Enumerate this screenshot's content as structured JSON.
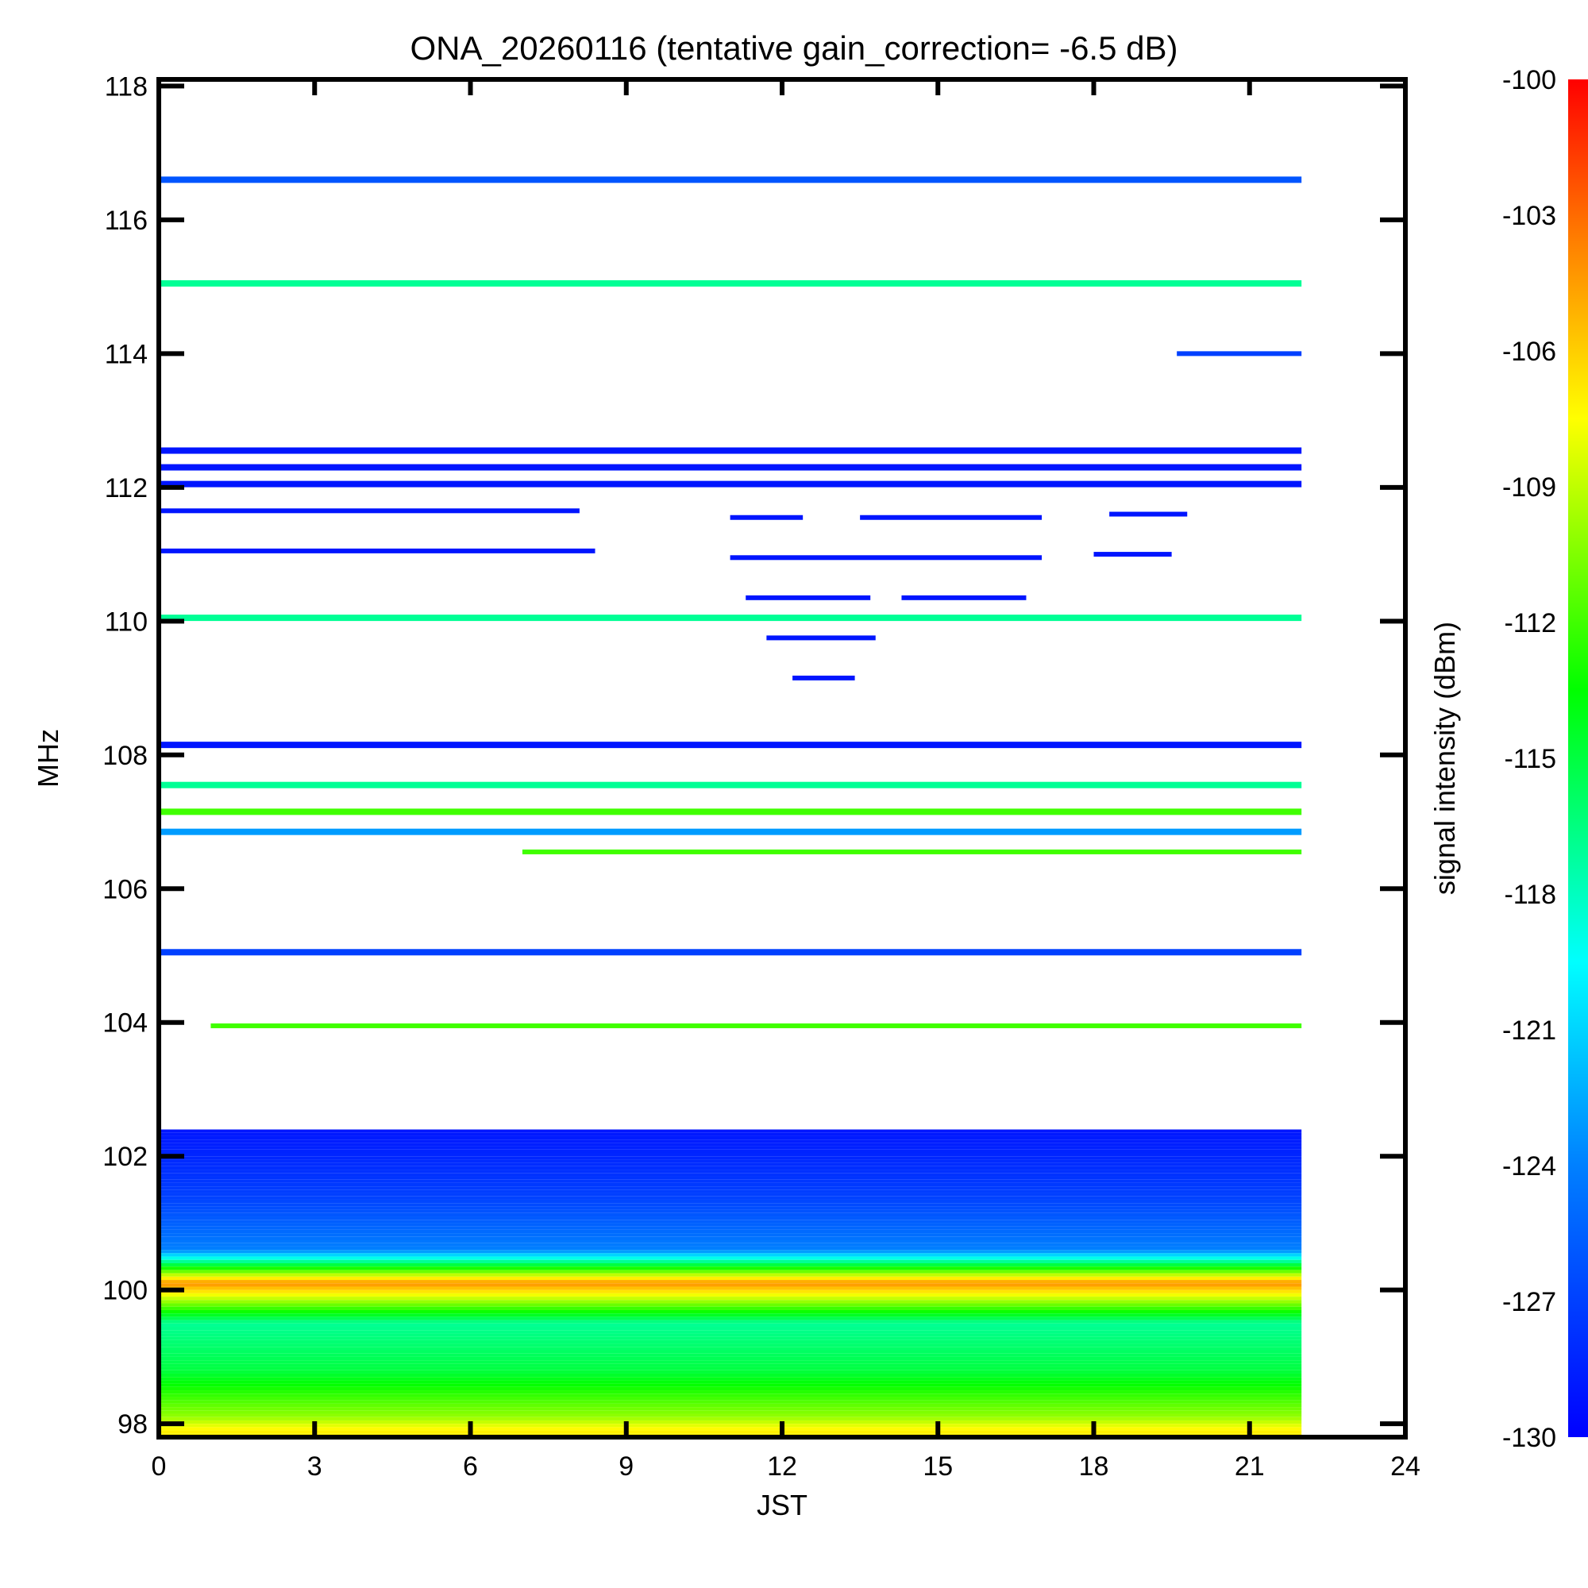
{
  "chart_data": {
    "type": "heatmap",
    "title": "ONA_20260116 (tentative gain_correction= -6.5 dB)",
    "xlabel": "JST",
    "ylabel": "MHz",
    "xlim": [
      0,
      24
    ],
    "ylim": [
      97.8,
      118.1
    ],
    "x_ticks": [
      0,
      3,
      6,
      9,
      12,
      15,
      18,
      21,
      24
    ],
    "y_ticks": [
      98,
      100,
      102,
      104,
      106,
      108,
      110,
      112,
      114,
      116,
      118
    ],
    "data_x_range": [
      0,
      22
    ],
    "colorbar": {
      "label": "signal intensity (dBm)",
      "range": [
        -130,
        -100
      ],
      "ticks": [
        -100,
        -103,
        -106,
        -109,
        -112,
        -115,
        -118,
        -121,
        -124,
        -127,
        -130
      ],
      "colormap": [
        "#0000ff",
        "#00ffff",
        "#00ff00",
        "#ffff00",
        "#ff8000",
        "#ff0000"
      ]
    },
    "persistent_bands": [
      {
        "freq_mhz": 116.6,
        "level_dbm": -126
      },
      {
        "freq_mhz": 115.05,
        "level_dbm": -117
      },
      {
        "freq_mhz": 112.55,
        "level_dbm": -129
      },
      {
        "freq_mhz": 112.3,
        "level_dbm": -129
      },
      {
        "freq_mhz": 112.05,
        "level_dbm": -129
      },
      {
        "freq_mhz": 110.05,
        "level_dbm": -117
      },
      {
        "freq_mhz": 108.15,
        "level_dbm": -129
      },
      {
        "freq_mhz": 107.55,
        "level_dbm": -117
      },
      {
        "freq_mhz": 107.15,
        "level_dbm": -112
      },
      {
        "freq_mhz": 106.85,
        "level_dbm": -123
      },
      {
        "freq_mhz": 105.05,
        "level_dbm": -127
      }
    ],
    "intermittent_bands": [
      {
        "freq_mhz": 111.65,
        "x_start": 0,
        "x_end": 8.1,
        "level_dbm": -129
      },
      {
        "freq_mhz": 111.05,
        "x_start": 0,
        "x_end": 8.4,
        "level_dbm": -129
      },
      {
        "freq_mhz": 111.55,
        "x_start": 11,
        "x_end": 12.4,
        "level_dbm": -129
      },
      {
        "freq_mhz": 111.55,
        "x_start": 13.5,
        "x_end": 17,
        "level_dbm": -129
      },
      {
        "freq_mhz": 111.6,
        "x_start": 18.3,
        "x_end": 19.8,
        "level_dbm": -129
      },
      {
        "freq_mhz": 110.95,
        "x_start": 11,
        "x_end": 17,
        "level_dbm": -129
      },
      {
        "freq_mhz": 111.0,
        "x_start": 18,
        "x_end": 19.5,
        "level_dbm": -129
      },
      {
        "freq_mhz": 110.35,
        "x_start": 11.3,
        "x_end": 13.7,
        "level_dbm": -129
      },
      {
        "freq_mhz": 110.35,
        "x_start": 14.3,
        "x_end": 16.7,
        "level_dbm": -129
      },
      {
        "freq_mhz": 109.75,
        "x_start": 11.7,
        "x_end": 13.8,
        "level_dbm": -129
      },
      {
        "freq_mhz": 109.15,
        "x_start": 12.2,
        "x_end": 13.4,
        "level_dbm": -129
      },
      {
        "freq_mhz": 106.55,
        "x_start": 7,
        "x_end": 22,
        "level_dbm": -112
      },
      {
        "freq_mhz": 103.95,
        "x_start": 1,
        "x_end": 22,
        "level_dbm": -112
      },
      {
        "freq_mhz": 114.0,
        "x_start": 19.6,
        "x_end": 22,
        "level_dbm": -127
      }
    ],
    "broadband_region": {
      "freq_range_mhz": [
        97.8,
        102.4
      ],
      "gradient": [
        {
          "freq_mhz": 102.4,
          "level_dbm": -129
        },
        {
          "freq_mhz": 101.4,
          "level_dbm": -127
        },
        {
          "freq_mhz": 100.6,
          "level_dbm": -124
        },
        {
          "freq_mhz": 100.1,
          "level_dbm": -104
        },
        {
          "freq_mhz": 99.5,
          "level_dbm": -117
        },
        {
          "freq_mhz": 98.8,
          "level_dbm": -115
        },
        {
          "freq_mhz": 98.1,
          "level_dbm": -110
        },
        {
          "freq_mhz": 97.9,
          "level_dbm": -107
        }
      ]
    }
  }
}
